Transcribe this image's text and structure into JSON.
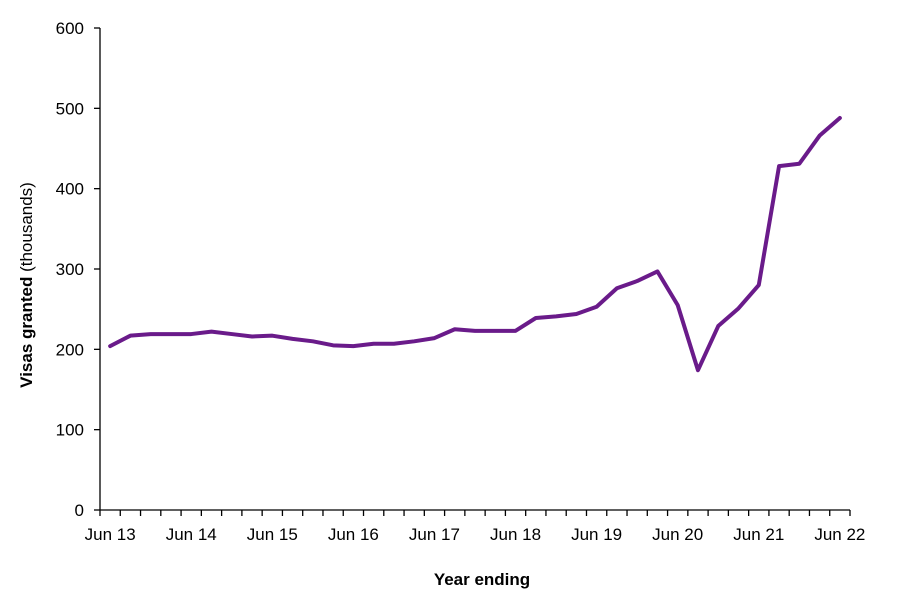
{
  "chart_data": {
    "type": "line",
    "xlabel": "Year ending",
    "ylabel_bold": "Visas granted",
    "ylabel_rest": " (thousands)",
    "ylim": [
      0,
      600
    ],
    "yticks": [
      "0",
      "100",
      "200",
      "300",
      "400",
      "500",
      "600"
    ],
    "grid": false,
    "line_color": "#6a1b8a",
    "x_tick_labels": [
      "Jun 13",
      "Jun 14",
      "Jun 15",
      "Jun 16",
      "Jun 17",
      "Jun 18",
      "Jun 19",
      "Jun 20",
      "Jun 21",
      "Jun 22"
    ],
    "series": [
      {
        "values": [
          204,
          217,
          219,
          219,
          219,
          222,
          219,
          216,
          217,
          213,
          210,
          205,
          204,
          207,
          207,
          210,
          214,
          225,
          223,
          223,
          223,
          239,
          241,
          244,
          253,
          276,
          285,
          297,
          255,
          174,
          229,
          251,
          280,
          428,
          431,
          466,
          488
        ]
      }
    ]
  }
}
